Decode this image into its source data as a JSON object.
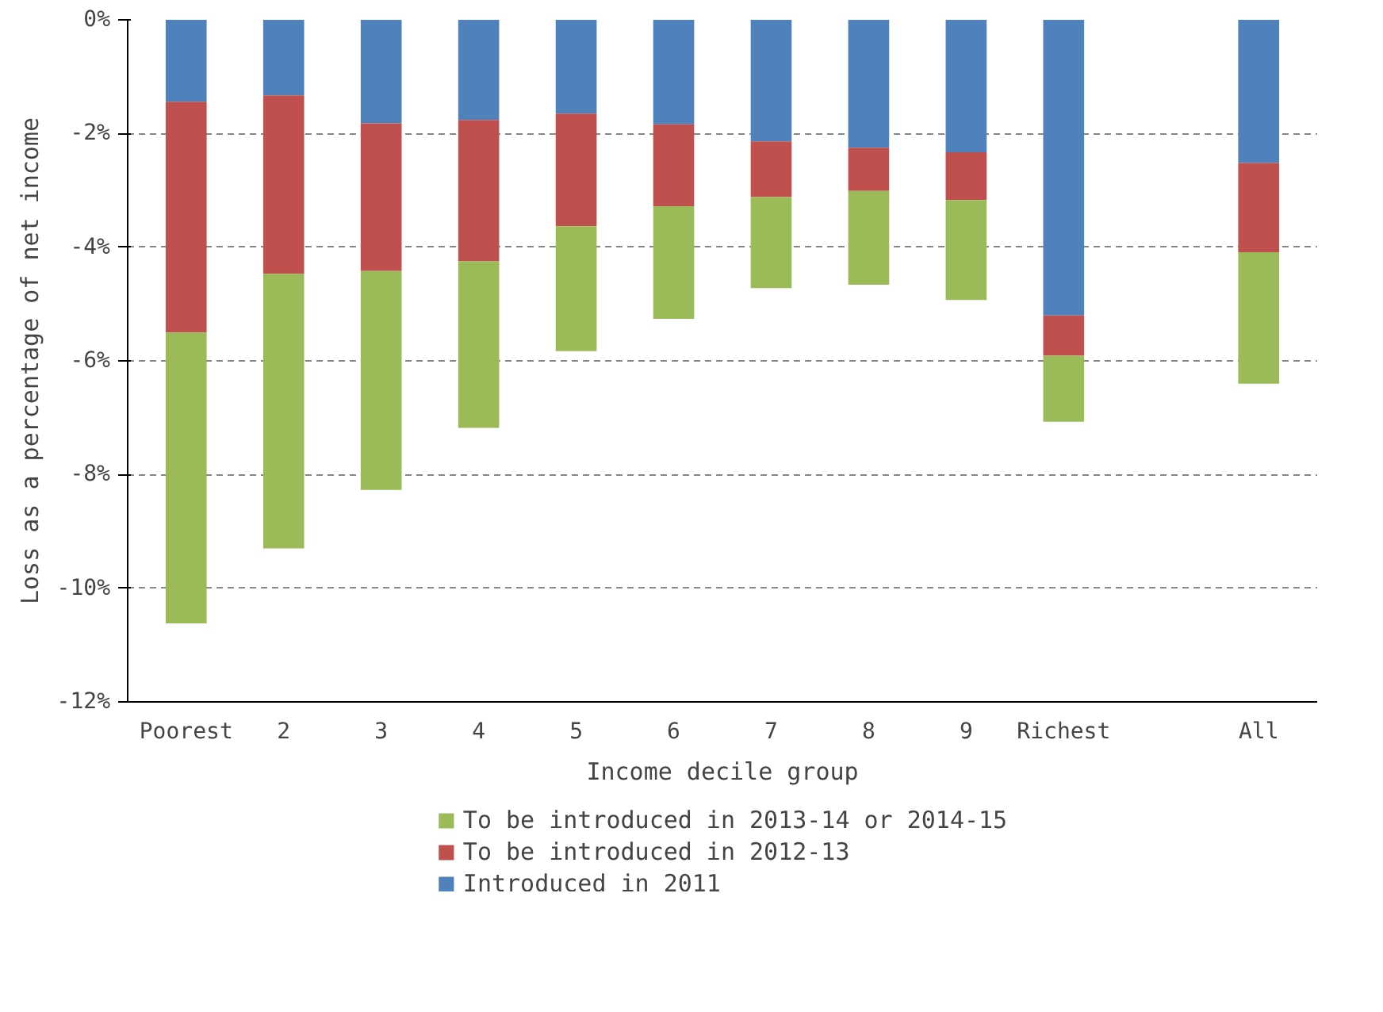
{
  "chart_data": {
    "type": "bar",
    "stacked": true,
    "xlabel": "Income decile group",
    "ylabel": "Loss as a percentage of net income",
    "categories": [
      "Poorest",
      "2",
      "3",
      "4",
      "5",
      "6",
      "7",
      "8",
      "9",
      "Richest",
      null,
      "All"
    ],
    "series": [
      {
        "name": "Introduced in 2011",
        "color": "#4f81bd",
        "values": [
          -1.44,
          -1.33,
          -1.82,
          -1.76,
          -1.65,
          -1.84,
          -2.14,
          -2.25,
          -2.33,
          -5.2,
          null,
          -2.52
        ]
      },
      {
        "name": "To be introduced in 2012-13",
        "color": "#c0504d",
        "values": [
          -4.06,
          -3.14,
          -2.6,
          -2.49,
          -1.98,
          -1.44,
          -0.98,
          -0.76,
          -0.84,
          -0.71,
          null,
          -1.57
        ]
      },
      {
        "name": "To be introduced in 2013-14 or 2014-15",
        "color": "#9bbb59",
        "values": [
          -5.12,
          -4.83,
          -3.85,
          -2.93,
          -2.2,
          -1.98,
          -1.6,
          -1.65,
          -1.76,
          -1.16,
          null,
          -2.31
        ]
      }
    ],
    "ylim": [
      -12,
      0
    ],
    "yticks": [
      {
        "value": -12,
        "label": "-12%"
      },
      {
        "value": -10,
        "label": "-10%"
      },
      {
        "value": -8,
        "label": "-8%"
      },
      {
        "value": -6,
        "label": "-6%"
      },
      {
        "value": -4,
        "label": "-4%"
      },
      {
        "value": -2,
        "label": "-2%"
      },
      {
        "value": 0,
        "label": "0%"
      }
    ],
    "grid": "y",
    "legend": "bottom"
  }
}
